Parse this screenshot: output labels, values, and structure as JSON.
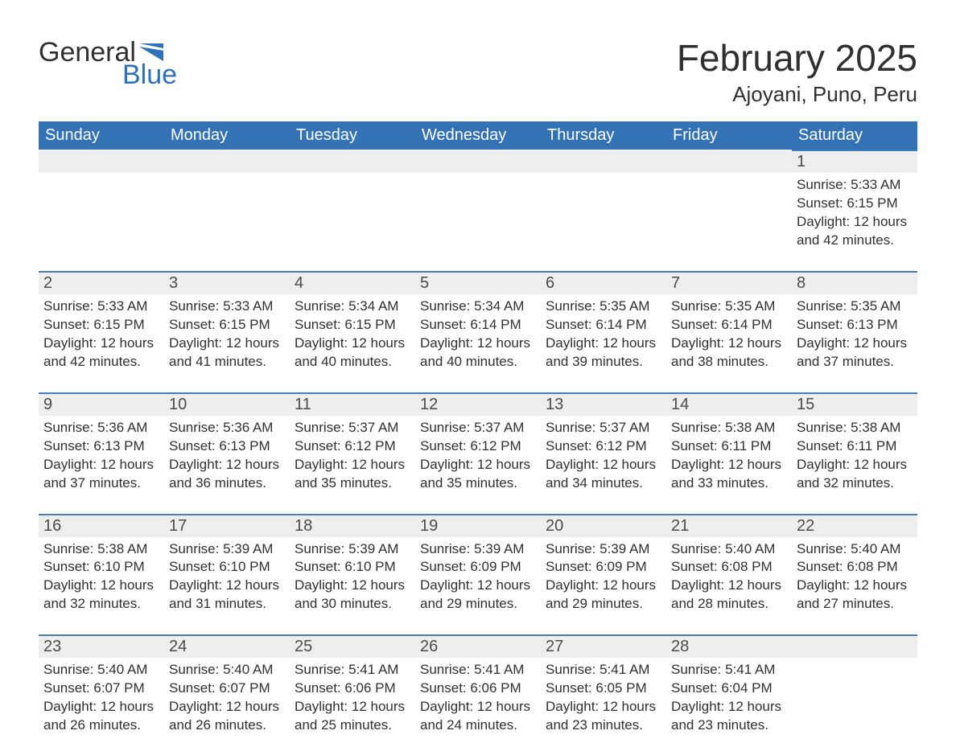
{
  "logo": {
    "word1": "General",
    "word2": "Blue",
    "text_color": "#303030",
    "accent_color": "#2f71b6",
    "mark_color": "#2f71b6"
  },
  "header": {
    "month_title": "February 2025",
    "location": "Ajoyani, Puno, Peru",
    "title_fontsize": 46,
    "location_fontsize": 26
  },
  "table": {
    "header_bg": "#3373b5",
    "header_text": "#ffffff",
    "daynum_bg": "#eeeeee",
    "daynum_border_top": "#3f7fbf",
    "cell_text_color": "#303030",
    "day_headers": [
      "Sunday",
      "Monday",
      "Tuesday",
      "Wednesday",
      "Thursday",
      "Friday",
      "Saturday"
    ]
  },
  "weeks": [
    [
      null,
      null,
      null,
      null,
      null,
      null,
      {
        "n": "1",
        "sunrise": "Sunrise: 5:33 AM",
        "sunset": "Sunset: 6:15 PM",
        "day1": "Daylight: 12 hours",
        "day2": "and 42 minutes."
      }
    ],
    [
      {
        "n": "2",
        "sunrise": "Sunrise: 5:33 AM",
        "sunset": "Sunset: 6:15 PM",
        "day1": "Daylight: 12 hours",
        "day2": "and 42 minutes."
      },
      {
        "n": "3",
        "sunrise": "Sunrise: 5:33 AM",
        "sunset": "Sunset: 6:15 PM",
        "day1": "Daylight: 12 hours",
        "day2": "and 41 minutes."
      },
      {
        "n": "4",
        "sunrise": "Sunrise: 5:34 AM",
        "sunset": "Sunset: 6:15 PM",
        "day1": "Daylight: 12 hours",
        "day2": "and 40 minutes."
      },
      {
        "n": "5",
        "sunrise": "Sunrise: 5:34 AM",
        "sunset": "Sunset: 6:14 PM",
        "day1": "Daylight: 12 hours",
        "day2": "and 40 minutes."
      },
      {
        "n": "6",
        "sunrise": "Sunrise: 5:35 AM",
        "sunset": "Sunset: 6:14 PM",
        "day1": "Daylight: 12 hours",
        "day2": "and 39 minutes."
      },
      {
        "n": "7",
        "sunrise": "Sunrise: 5:35 AM",
        "sunset": "Sunset: 6:14 PM",
        "day1": "Daylight: 12 hours",
        "day2": "and 38 minutes."
      },
      {
        "n": "8",
        "sunrise": "Sunrise: 5:35 AM",
        "sunset": "Sunset: 6:13 PM",
        "day1": "Daylight: 12 hours",
        "day2": "and 37 minutes."
      }
    ],
    [
      {
        "n": "9",
        "sunrise": "Sunrise: 5:36 AM",
        "sunset": "Sunset: 6:13 PM",
        "day1": "Daylight: 12 hours",
        "day2": "and 37 minutes."
      },
      {
        "n": "10",
        "sunrise": "Sunrise: 5:36 AM",
        "sunset": "Sunset: 6:13 PM",
        "day1": "Daylight: 12 hours",
        "day2": "and 36 minutes."
      },
      {
        "n": "11",
        "sunrise": "Sunrise: 5:37 AM",
        "sunset": "Sunset: 6:12 PM",
        "day1": "Daylight: 12 hours",
        "day2": "and 35 minutes."
      },
      {
        "n": "12",
        "sunrise": "Sunrise: 5:37 AM",
        "sunset": "Sunset: 6:12 PM",
        "day1": "Daylight: 12 hours",
        "day2": "and 35 minutes."
      },
      {
        "n": "13",
        "sunrise": "Sunrise: 5:37 AM",
        "sunset": "Sunset: 6:12 PM",
        "day1": "Daylight: 12 hours",
        "day2": "and 34 minutes."
      },
      {
        "n": "14",
        "sunrise": "Sunrise: 5:38 AM",
        "sunset": "Sunset: 6:11 PM",
        "day1": "Daylight: 12 hours",
        "day2": "and 33 minutes."
      },
      {
        "n": "15",
        "sunrise": "Sunrise: 5:38 AM",
        "sunset": "Sunset: 6:11 PM",
        "day1": "Daylight: 12 hours",
        "day2": "and 32 minutes."
      }
    ],
    [
      {
        "n": "16",
        "sunrise": "Sunrise: 5:38 AM",
        "sunset": "Sunset: 6:10 PM",
        "day1": "Daylight: 12 hours",
        "day2": "and 32 minutes."
      },
      {
        "n": "17",
        "sunrise": "Sunrise: 5:39 AM",
        "sunset": "Sunset: 6:10 PM",
        "day1": "Daylight: 12 hours",
        "day2": "and 31 minutes."
      },
      {
        "n": "18",
        "sunrise": "Sunrise: 5:39 AM",
        "sunset": "Sunset: 6:10 PM",
        "day1": "Daylight: 12 hours",
        "day2": "and 30 minutes."
      },
      {
        "n": "19",
        "sunrise": "Sunrise: 5:39 AM",
        "sunset": "Sunset: 6:09 PM",
        "day1": "Daylight: 12 hours",
        "day2": "and 29 minutes."
      },
      {
        "n": "20",
        "sunrise": "Sunrise: 5:39 AM",
        "sunset": "Sunset: 6:09 PM",
        "day1": "Daylight: 12 hours",
        "day2": "and 29 minutes."
      },
      {
        "n": "21",
        "sunrise": "Sunrise: 5:40 AM",
        "sunset": "Sunset: 6:08 PM",
        "day1": "Daylight: 12 hours",
        "day2": "and 28 minutes."
      },
      {
        "n": "22",
        "sunrise": "Sunrise: 5:40 AM",
        "sunset": "Sunset: 6:08 PM",
        "day1": "Daylight: 12 hours",
        "day2": "and 27 minutes."
      }
    ],
    [
      {
        "n": "23",
        "sunrise": "Sunrise: 5:40 AM",
        "sunset": "Sunset: 6:07 PM",
        "day1": "Daylight: 12 hours",
        "day2": "and 26 minutes."
      },
      {
        "n": "24",
        "sunrise": "Sunrise: 5:40 AM",
        "sunset": "Sunset: 6:07 PM",
        "day1": "Daylight: 12 hours",
        "day2": "and 26 minutes."
      },
      {
        "n": "25",
        "sunrise": "Sunrise: 5:41 AM",
        "sunset": "Sunset: 6:06 PM",
        "day1": "Daylight: 12 hours",
        "day2": "and 25 minutes."
      },
      {
        "n": "26",
        "sunrise": "Sunrise: 5:41 AM",
        "sunset": "Sunset: 6:06 PM",
        "day1": "Daylight: 12 hours",
        "day2": "and 24 minutes."
      },
      {
        "n": "27",
        "sunrise": "Sunrise: 5:41 AM",
        "sunset": "Sunset: 6:05 PM",
        "day1": "Daylight: 12 hours",
        "day2": "and 23 minutes."
      },
      {
        "n": "28",
        "sunrise": "Sunrise: 5:41 AM",
        "sunset": "Sunset: 6:04 PM",
        "day1": "Daylight: 12 hours",
        "day2": "and 23 minutes."
      },
      null
    ]
  ]
}
